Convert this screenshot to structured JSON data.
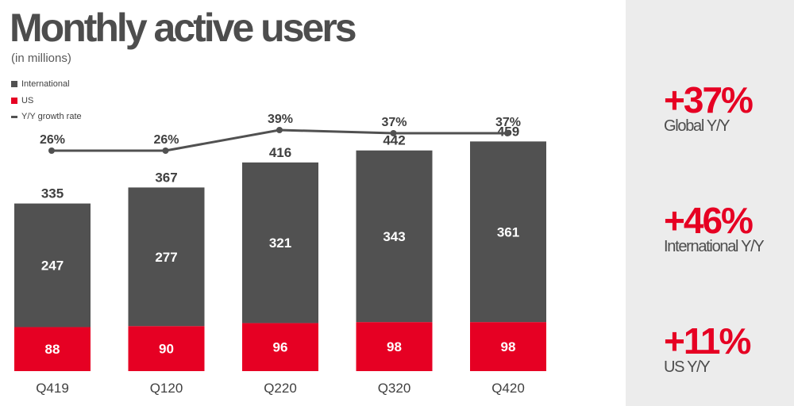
{
  "title": "Monthly active users",
  "subtitle": "(in millions)",
  "legend": [
    {
      "label": "International",
      "color": "#515151"
    },
    {
      "label": "US",
      "color": "#e60023"
    },
    {
      "label": "Y/Y growth rate",
      "color": "#515151"
    }
  ],
  "chart_data": {
    "type": "bar",
    "stacked": true,
    "categories": [
      "Q419",
      "Q120",
      "Q220",
      "Q320",
      "Q420"
    ],
    "series": [
      {
        "name": "US",
        "values": [
          88,
          90,
          96,
          98,
          98
        ],
        "color": "#e60023"
      },
      {
        "name": "International",
        "values": [
          247,
          277,
          321,
          343,
          361
        ],
        "color": "#515151"
      }
    ],
    "totals": [
      335,
      367,
      416,
      442,
      459
    ],
    "growth_line": {
      "name": "Y/Y growth rate",
      "values": [
        26,
        26,
        39,
        37,
        37
      ],
      "labels": [
        "26%",
        "26%",
        "39%",
        "37%",
        "37%"
      ]
    },
    "grid": false,
    "legend_position": "top-left"
  },
  "kpis": [
    {
      "value": "+37%",
      "label": "Global Y/Y"
    },
    {
      "value": "+46%",
      "label": "International Y/Y"
    },
    {
      "value": "+11%",
      "label": "US Y/Y"
    }
  ],
  "colors": {
    "accent": "#e60023",
    "bar_dark": "#515151",
    "sidebar_bg": "#ececec"
  }
}
